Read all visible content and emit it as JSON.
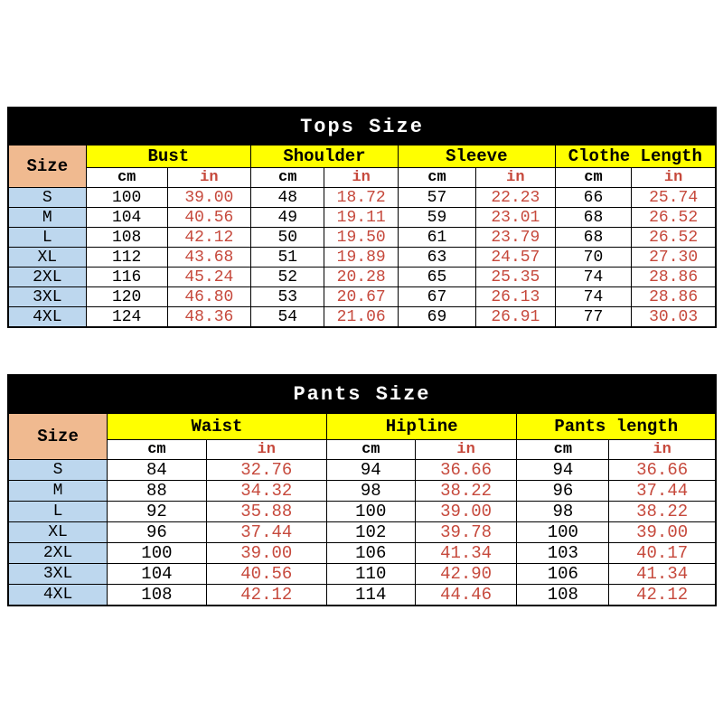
{
  "colors": {
    "title_band_bg": "#000000",
    "title_text": "#ffffff",
    "category_header_bg": "#ffff00",
    "size_header_bg": "#f0ba90",
    "size_column_bg": "#bdd7ee",
    "cm_text": "#000000",
    "in_text": "#c6493c",
    "grid": "#000000"
  },
  "units": {
    "cm": "cm",
    "in": "in"
  },
  "tops": {
    "title": "Tops Size",
    "size_label": "Size",
    "sections": [
      {
        "label": "Bust"
      },
      {
        "label": "Shoulder"
      },
      {
        "label": "Sleeve"
      },
      {
        "label": "Clothe Length"
      }
    ],
    "rows": [
      {
        "size": "S",
        "cells": [
          "100",
          "39.00",
          "48",
          "18.72",
          "57",
          "22.23",
          "66",
          "25.74"
        ]
      },
      {
        "size": "M",
        "cells": [
          "104",
          "40.56",
          "49",
          "19.11",
          "59",
          "23.01",
          "68",
          "26.52"
        ]
      },
      {
        "size": "L",
        "cells": [
          "108",
          "42.12",
          "50",
          "19.50",
          "61",
          "23.79",
          "68",
          "26.52"
        ]
      },
      {
        "size": "XL",
        "cells": [
          "112",
          "43.68",
          "51",
          "19.89",
          "63",
          "24.57",
          "70",
          "27.30"
        ]
      },
      {
        "size": "2XL",
        "cells": [
          "116",
          "45.24",
          "52",
          "20.28",
          "65",
          "25.35",
          "74",
          "28.86"
        ]
      },
      {
        "size": "3XL",
        "cells": [
          "120",
          "46.80",
          "53",
          "20.67",
          "67",
          "26.13",
          "74",
          "28.86"
        ]
      },
      {
        "size": "4XL",
        "cells": [
          "124",
          "48.36",
          "54",
          "21.06",
          "69",
          "26.91",
          "77",
          "30.03"
        ]
      }
    ]
  },
  "pants": {
    "title": "Pants Size",
    "size_label": "Size",
    "sections": [
      {
        "label": "Waist"
      },
      {
        "label": "Hipline"
      },
      {
        "label": "Pants length"
      }
    ],
    "rows": [
      {
        "size": "S",
        "cells": [
          "84",
          "32.76",
          "94",
          "36.66",
          "94",
          "36.66"
        ]
      },
      {
        "size": "M",
        "cells": [
          "88",
          "34.32",
          "98",
          "38.22",
          "96",
          "37.44"
        ]
      },
      {
        "size": "L",
        "cells": [
          "92",
          "35.88",
          "100",
          "39.00",
          "98",
          "38.22"
        ]
      },
      {
        "size": "XL",
        "cells": [
          "96",
          "37.44",
          "102",
          "39.78",
          "100",
          "39.00"
        ]
      },
      {
        "size": "2XL",
        "cells": [
          "100",
          "39.00",
          "106",
          "41.34",
          "103",
          "40.17"
        ]
      },
      {
        "size": "3XL",
        "cells": [
          "104",
          "40.56",
          "110",
          "42.90",
          "106",
          "41.34"
        ]
      },
      {
        "size": "4XL",
        "cells": [
          "108",
          "42.12",
          "114",
          "44.46",
          "108",
          "42.12"
        ]
      }
    ]
  }
}
